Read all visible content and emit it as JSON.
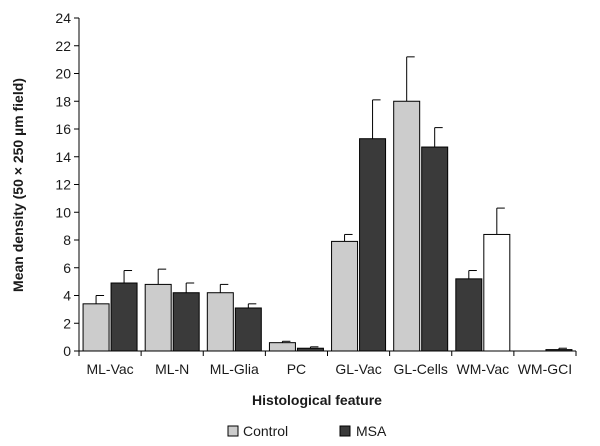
{
  "chart_data": {
    "type": "bar",
    "title": "",
    "xlabel": "Histological feature",
    "ylabel": "Mean density (50 × 250 µm field)",
    "ylim": [
      0,
      24
    ],
    "yticks": [
      0,
      2,
      4,
      6,
      8,
      10,
      12,
      14,
      16,
      18,
      20,
      22,
      24
    ],
    "grid": false,
    "legend_position": "bottom",
    "categories": [
      "ML-Vac",
      "ML-N",
      "ML-Glia",
      "PC",
      "GL-Vac",
      "GL-Cells",
      "WM-Vac",
      "WM-GCI"
    ],
    "legend": [
      {
        "name": "Control",
        "color": "#cccccc"
      },
      {
        "name": "MSA",
        "color": "#3a3a3a"
      }
    ],
    "series": [
      {
        "name": "Control",
        "color": "#cccccc",
        "values": [
          3.4,
          4.8,
          4.2,
          0.6,
          7.9,
          18.0,
          null,
          null
        ],
        "errors": [
          0.6,
          1.1,
          0.6,
          0.1,
          0.5,
          3.2,
          null,
          null
        ]
      },
      {
        "name": "MSA",
        "color": "#3a3a3a",
        "values": [
          4.9,
          4.2,
          3.1,
          0.2,
          15.3,
          14.7,
          null,
          null
        ],
        "errors": [
          0.9,
          0.7,
          0.3,
          0.1,
          2.8,
          1.4,
          null,
          null
        ]
      }
    ],
    "extra_bars": [
      {
        "category": "WM-Vac",
        "slot": 0,
        "value": 5.2,
        "error": 0.6,
        "color": "#3a3a3a"
      },
      {
        "category": "WM-Vac",
        "slot": 1,
        "value": 8.4,
        "error": 1.9,
        "color": "#ffffff"
      },
      {
        "category": "WM-GCI",
        "slot": 1,
        "value": 0.1,
        "error": 0.1,
        "color": "#3a3a3a"
      }
    ]
  }
}
